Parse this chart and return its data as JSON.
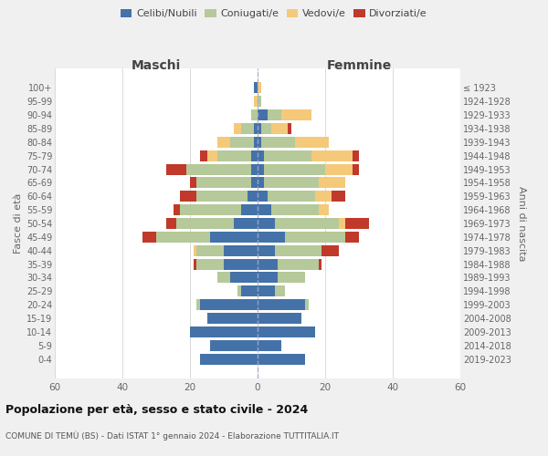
{
  "age_groups": [
    "0-4",
    "5-9",
    "10-14",
    "15-19",
    "20-24",
    "25-29",
    "30-34",
    "35-39",
    "40-44",
    "45-49",
    "50-54",
    "55-59",
    "60-64",
    "65-69",
    "70-74",
    "75-79",
    "80-84",
    "85-89",
    "90-94",
    "95-99",
    "100+"
  ],
  "birth_years": [
    "2019-2023",
    "2014-2018",
    "2009-2013",
    "2004-2008",
    "1999-2003",
    "1994-1998",
    "1989-1993",
    "1984-1988",
    "1979-1983",
    "1974-1978",
    "1969-1973",
    "1964-1968",
    "1959-1963",
    "1954-1958",
    "1949-1953",
    "1944-1948",
    "1939-1943",
    "1934-1938",
    "1929-1933",
    "1924-1928",
    "≤ 1923"
  ],
  "colors": {
    "celibi": "#4472a8",
    "coniugati": "#b5c99a",
    "vedovi": "#f5c97a",
    "divorziati": "#c0392b"
  },
  "legend_labels": [
    "Celibi/Nubili",
    "Coniugati/e",
    "Vedovi/e",
    "Divorziati/e"
  ],
  "maschi": {
    "celibi": [
      17,
      14,
      20,
      15,
      17,
      5,
      8,
      10,
      10,
      14,
      7,
      5,
      3,
      2,
      2,
      2,
      1,
      1,
      0,
      0,
      1
    ],
    "coniugati": [
      0,
      0,
      0,
      0,
      1,
      1,
      4,
      8,
      8,
      16,
      17,
      18,
      15,
      16,
      19,
      10,
      7,
      4,
      2,
      0,
      0
    ],
    "vedovi": [
      0,
      0,
      0,
      0,
      0,
      0,
      0,
      0,
      1,
      0,
      0,
      0,
      0,
      0,
      0,
      3,
      4,
      2,
      0,
      1,
      0
    ],
    "divorziati": [
      0,
      0,
      0,
      0,
      0,
      0,
      0,
      1,
      0,
      4,
      3,
      2,
      5,
      2,
      6,
      2,
      0,
      0,
      0,
      0,
      0
    ]
  },
  "femmine": {
    "nubili": [
      14,
      7,
      17,
      13,
      14,
      5,
      6,
      6,
      5,
      8,
      5,
      4,
      3,
      2,
      2,
      2,
      1,
      1,
      3,
      0,
      0
    ],
    "coniugate": [
      0,
      0,
      0,
      0,
      1,
      3,
      8,
      12,
      14,
      18,
      19,
      14,
      14,
      16,
      18,
      14,
      10,
      3,
      4,
      1,
      0
    ],
    "vedove": [
      0,
      0,
      0,
      0,
      0,
      0,
      0,
      0,
      0,
      0,
      2,
      3,
      5,
      8,
      8,
      12,
      10,
      5,
      9,
      0,
      1
    ],
    "divorziate": [
      0,
      0,
      0,
      0,
      0,
      0,
      0,
      1,
      5,
      4,
      7,
      0,
      4,
      0,
      2,
      2,
      0,
      1,
      0,
      0,
      0
    ]
  },
  "xlim": 60,
  "title": "Popolazione per età, sesso e stato civile - 2024",
  "subtitle": "COMUNE DI TEMÙ (BS) - Dati ISTAT 1° gennaio 2024 - Elaborazione TUTTITALIA.IT",
  "ylabel_left": "Fasce di età",
  "ylabel_right": "Anni di nascita",
  "xlabel_maschi": "Maschi",
  "xlabel_femmine": "Femmine",
  "bg_color": "#f0f0f0",
  "plot_bg": "#ffffff"
}
